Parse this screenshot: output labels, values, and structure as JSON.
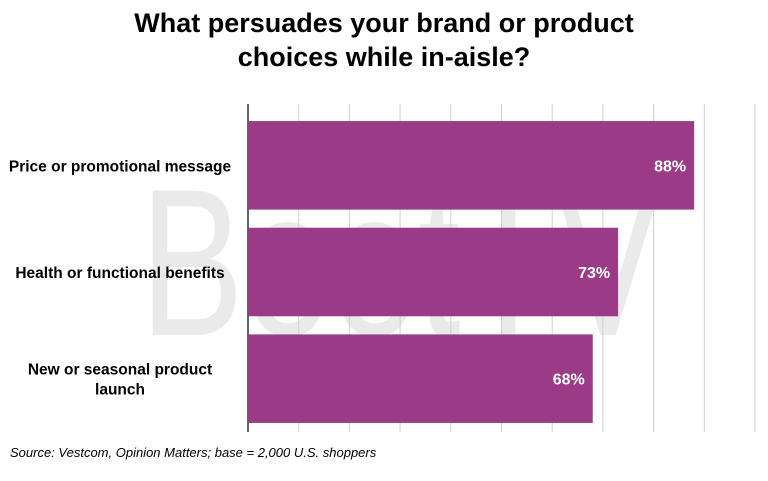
{
  "chart_data": {
    "type": "bar",
    "orientation": "horizontal",
    "title": [
      "What persuades your brand or product",
      "choices while in-aisle?"
    ],
    "categories": [
      [
        "Price or promotional message"
      ],
      [
        "Health or functional benefits"
      ],
      [
        "New or seasonal product",
        "launch"
      ]
    ],
    "values": [
      88,
      73,
      68
    ],
    "data_labels": [
      "88%",
      "73%",
      "68%"
    ],
    "xlim": [
      0,
      100
    ],
    "grid": true,
    "bar_color": "#9B3B87",
    "source": "Source: Vestcom, Opinion Matters; base = 2,000 U.S. shoppers"
  },
  "watermark": {
    "text": "BeetTV"
  }
}
